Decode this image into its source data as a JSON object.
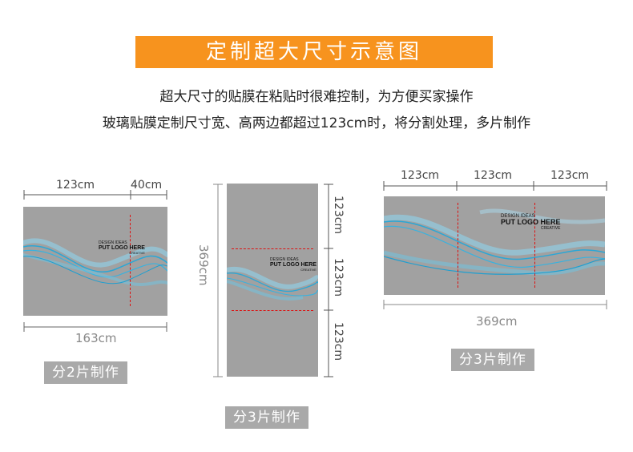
{
  "header": {
    "title": "定制超大尺寸示意图"
  },
  "description": {
    "line1": "超大尺寸的贴膜在粘贴时很难控制，为方便买家操作",
    "line2": "玻璃贴膜定制尺寸宽、高两边都超过123cm时，将分割处理，多片制作"
  },
  "diagrams": {
    "left": {
      "dim_a": "123cm",
      "dim_b": "40cm",
      "total": "163cm",
      "badge": "分2片制作"
    },
    "middle": {
      "total": "369cm",
      "seg1": "123cm",
      "seg2": "123cm",
      "seg3": "123cm",
      "badge": "分3片制作"
    },
    "right": {
      "seg1": "123cm",
      "seg2": "123cm",
      "seg3": "123cm",
      "total": "369cm",
      "badge": "分3片制作"
    }
  },
  "logo": {
    "line1": "DESIGN IDEAS",
    "line2": "PUT LOGO HERE",
    "line3": "CREATIVE"
  },
  "colors": {
    "banner": "#f7931e",
    "panel": "#a1a1a1",
    "wave": "#2aa7d6",
    "cut_line": "#dd1111",
    "badge": "#a9a9a9"
  }
}
